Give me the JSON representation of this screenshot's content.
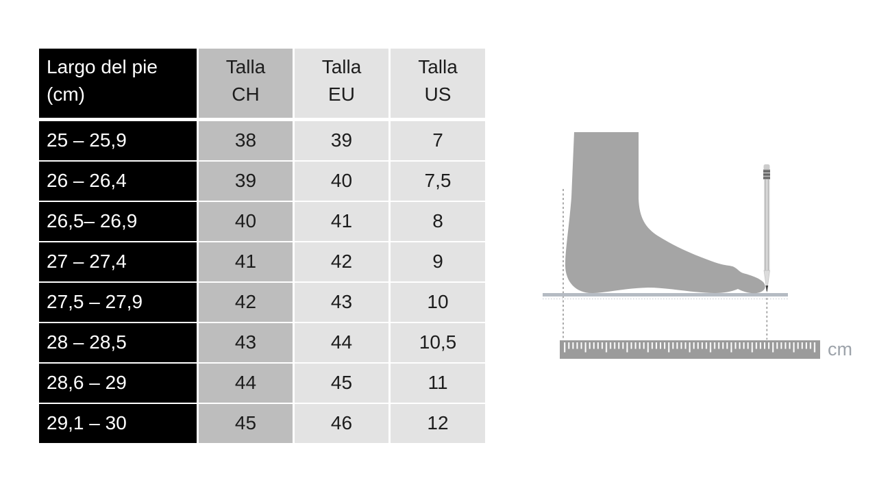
{
  "table": {
    "headers": [
      "Largo del pie\n(cm)",
      "Talla\nCH",
      "Talla\nEU",
      "Talla\nUS"
    ],
    "rows": [
      {
        "range": "25 – 25,9",
        "ch": "38",
        "eu": "39",
        "us": "7"
      },
      {
        "range": "26 – 26,4",
        "ch": "39",
        "eu": "40",
        "us": "7,5"
      },
      {
        "range": "26,5– 26,9",
        "ch": "40",
        "eu": "41",
        "us": "8"
      },
      {
        "range": "27 – 27,4",
        "ch": "41",
        "eu": "42",
        "us": "9"
      },
      {
        "range": "27,5 – 27,9",
        "ch": "42",
        "eu": "43",
        "us": "10"
      },
      {
        "range": "28 – 28,5",
        "ch": "43",
        "eu": "44",
        "us": "10,5"
      },
      {
        "range": "28,6 – 29",
        "ch": "44",
        "eu": "45",
        "us": "11"
      },
      {
        "range": "29,1 – 30",
        "ch": "45",
        "eu": "46",
        "us": "12"
      }
    ],
    "colors": {
      "col_range_bg": "#000000",
      "col_range_text": "#ffffff",
      "col_ch_bg": "#bdbdbd",
      "col_light_bg": "#e3e3e3",
      "cell_text": "#1c1c1c"
    }
  },
  "illustration": {
    "unit_label": "cm",
    "colors": {
      "foot": "#a5a5a5",
      "ruler": "#9b9b9b",
      "floor": "#b5bbc3",
      "dash": "#a9a9a9",
      "unit_text": "#9da3aa"
    }
  }
}
